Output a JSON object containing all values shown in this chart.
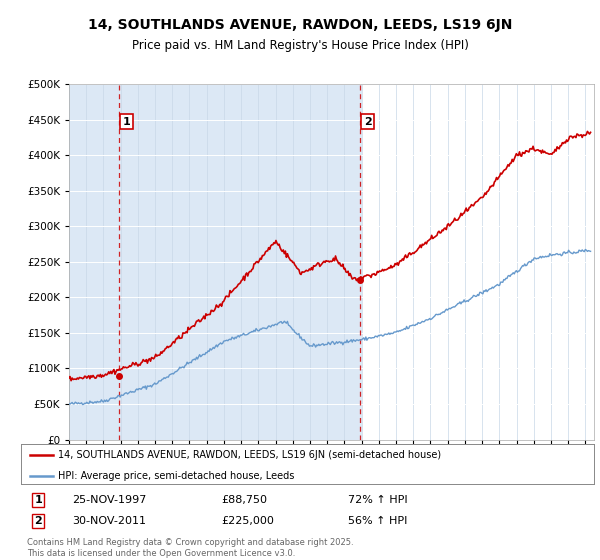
{
  "title": "14, SOUTHLANDS AVENUE, RAWDON, LEEDS, LS19 6JN",
  "subtitle": "Price paid vs. HM Land Registry's House Price Index (HPI)",
  "legend_line1": "14, SOUTHLANDS AVENUE, RAWDON, LEEDS, LS19 6JN (semi-detached house)",
  "legend_line2": "HPI: Average price, semi-detached house, Leeds",
  "sale1_label": "1",
  "sale1_date": "25-NOV-1997",
  "sale1_price": 88750,
  "sale1_hpi_pct": "72% ↑ HPI",
  "sale2_label": "2",
  "sale2_date": "30-NOV-2011",
  "sale2_price": 225000,
  "sale2_hpi_pct": "56% ↑ HPI",
  "footer": "Contains HM Land Registry data © Crown copyright and database right 2025.\nThis data is licensed under the Open Government Licence v3.0.",
  "ylim": [
    0,
    500000
  ],
  "yticks": [
    0,
    50000,
    100000,
    150000,
    200000,
    250000,
    300000,
    350000,
    400000,
    450000,
    500000
  ],
  "xlim_start": 1995.0,
  "xlim_end": 2025.5,
  "fig_bg_color": "#ffffff",
  "plot_bg_color": "#dce8f5",
  "plot_bg_color_right": "#ffffff",
  "red_color": "#cc0000",
  "blue_color": "#6699cc",
  "sale1_x": 1997.92,
  "sale1_y": 88750,
  "sale2_x": 2011.92,
  "sale2_y": 225000
}
